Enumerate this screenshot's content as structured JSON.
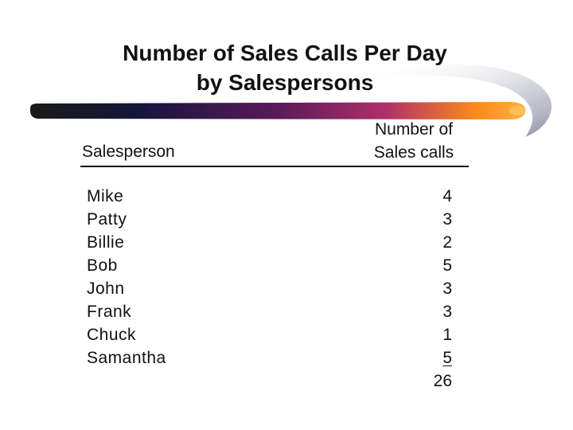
{
  "slide": {
    "title_line_1": "Number of Sales Calls Per Day",
    "title_line_2": "by Salespersons"
  },
  "table": {
    "header_salesperson": "Salesperson",
    "header_calls_line_1": "Number of",
    "header_calls_line_2": "Sales calls",
    "rows": [
      {
        "name": "Mike",
        "calls": "4"
      },
      {
        "name": "Patty",
        "calls": "3"
      },
      {
        "name": "Billie",
        "calls": "2"
      },
      {
        "name": "Bob",
        "calls": "5"
      },
      {
        "name": "John",
        "calls": "3"
      },
      {
        "name": "Frank",
        "calls": "3"
      },
      {
        "name": "Chuck",
        "calls": "1"
      },
      {
        "name": "Samantha",
        "calls": "5"
      }
    ],
    "total": "26"
  },
  "colors": {
    "swoosh_dark": "#15153a",
    "swoosh_mid": "#7a1f5e",
    "swoosh_accent": "#ff9a1a",
    "rule": "#111111"
  }
}
